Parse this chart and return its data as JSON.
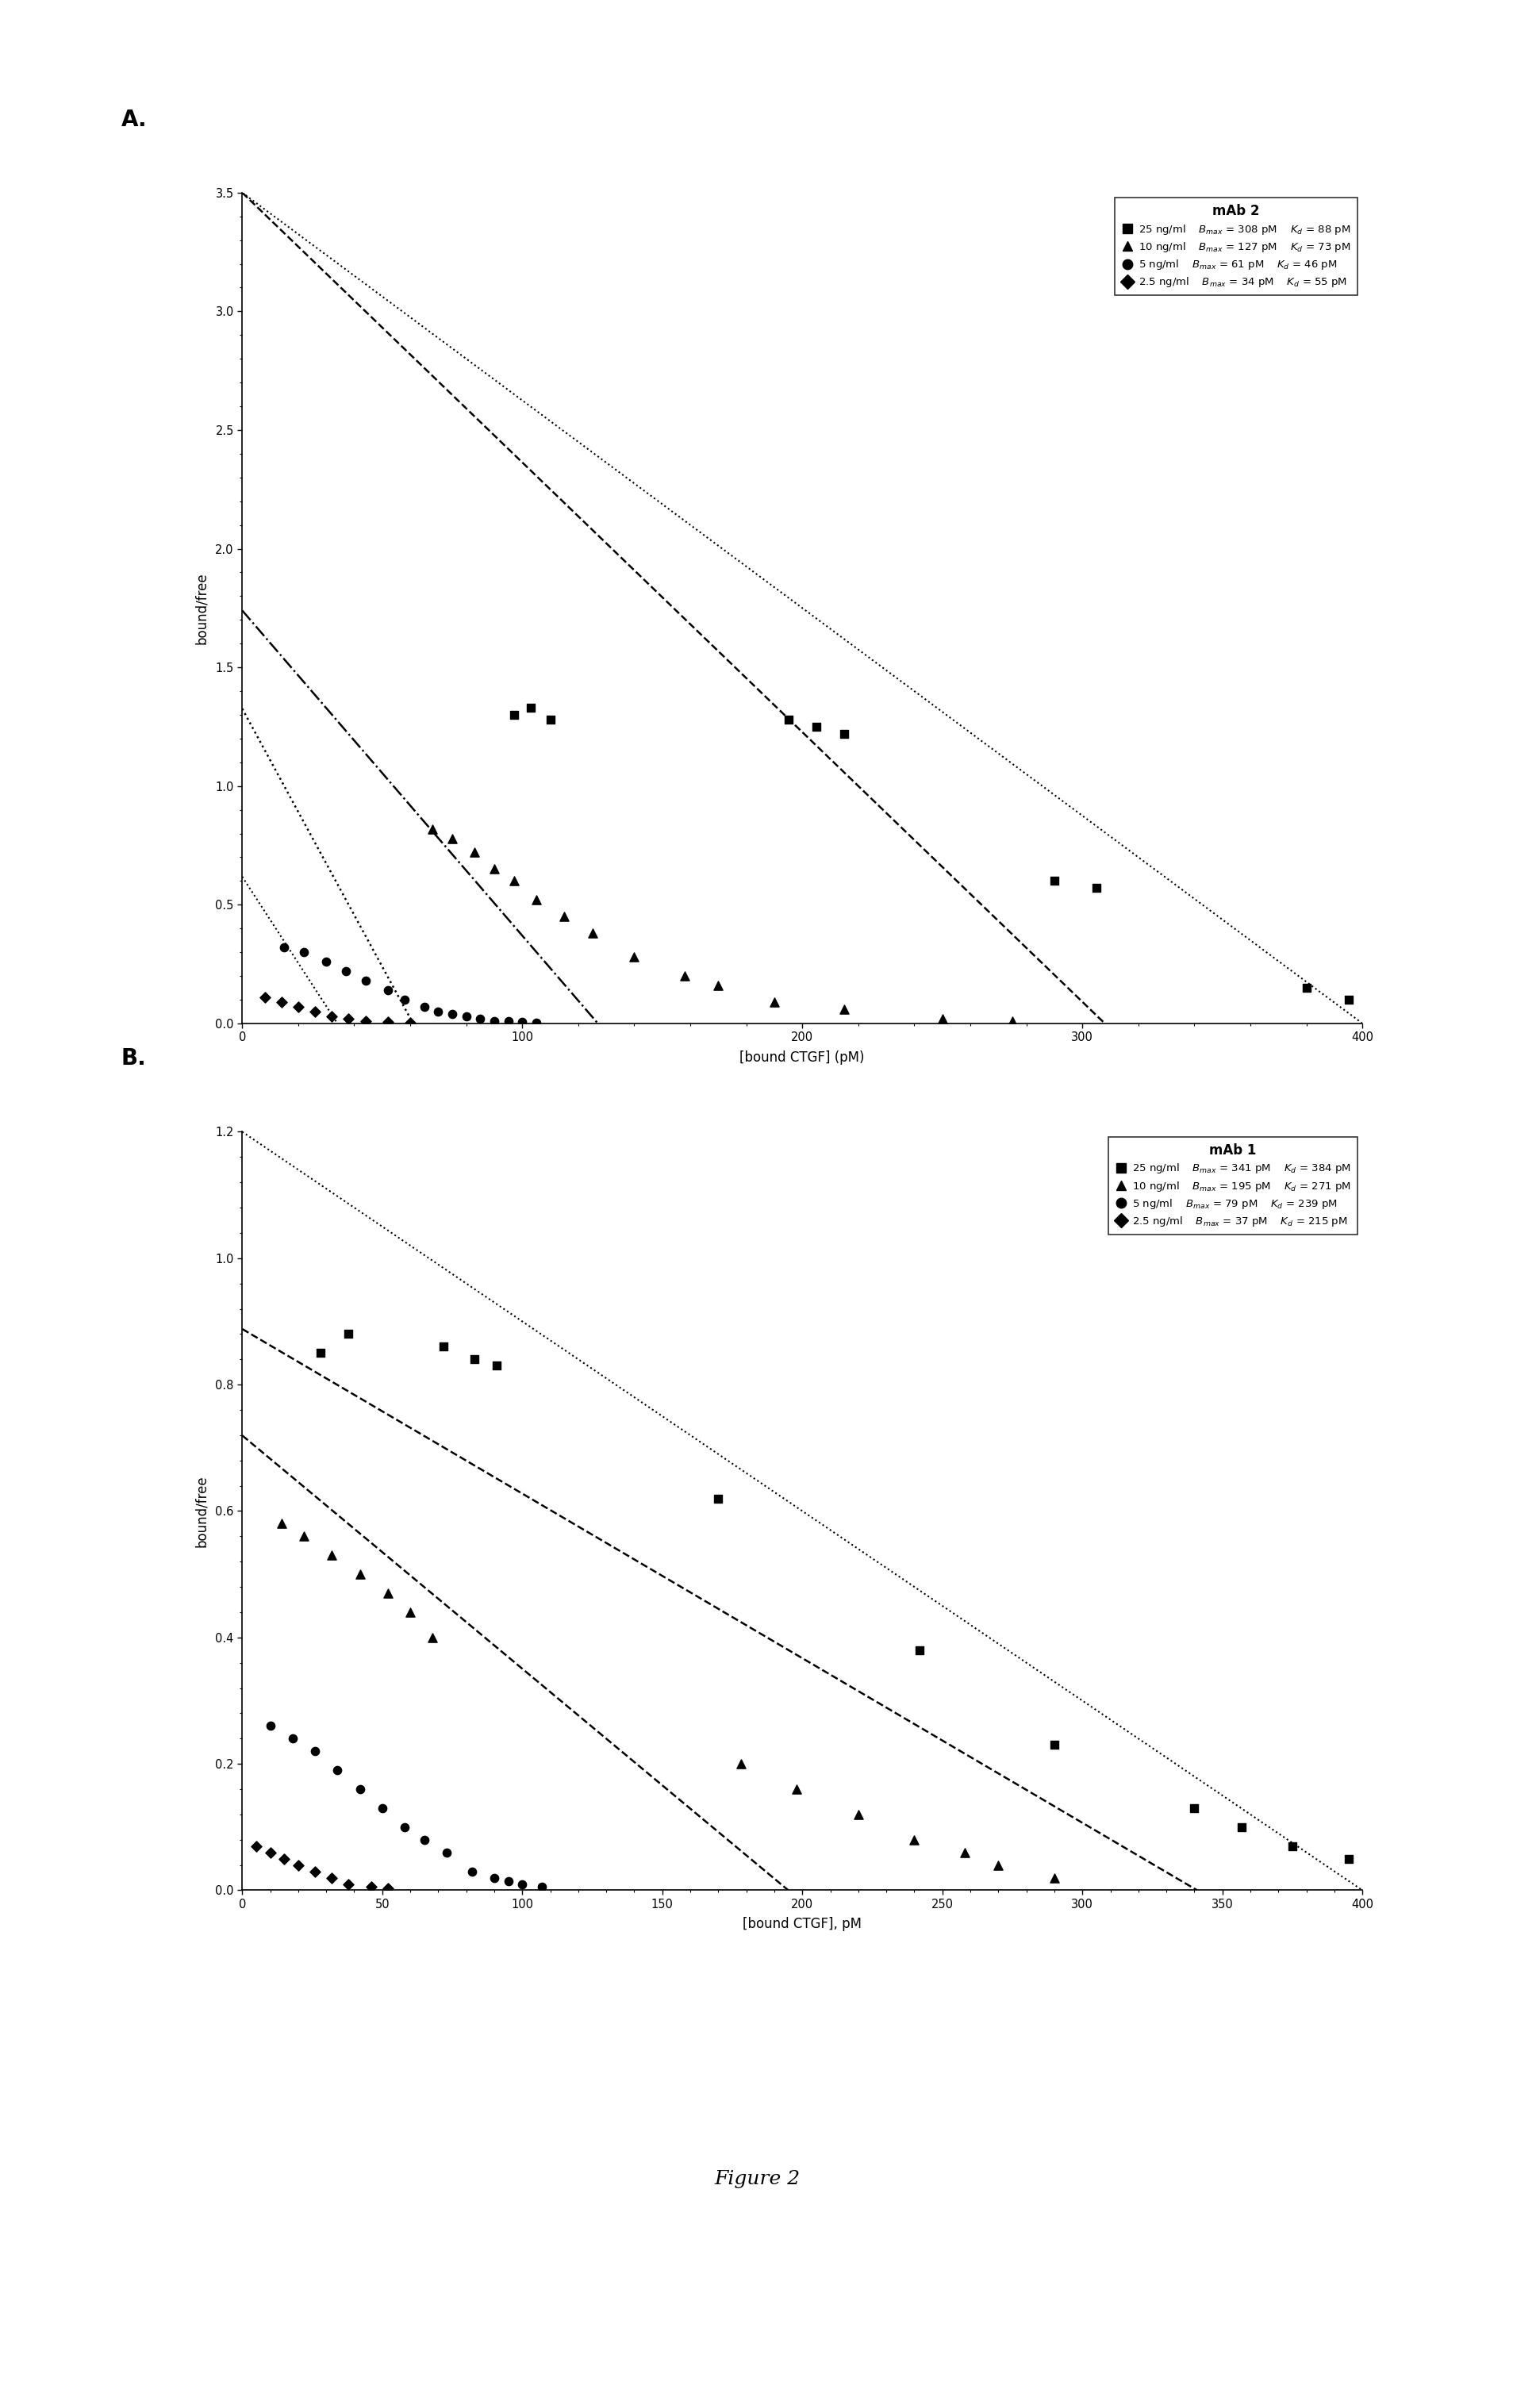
{
  "panel_A": {
    "title": "mAb 2",
    "xlabel": "[bound CTGF] (pM)",
    "ylabel": "bound/free",
    "xlim": [
      0,
      400
    ],
    "ylim": [
      0,
      3.5
    ],
    "yticks": [
      0.0,
      0.5,
      1.0,
      1.5,
      2.0,
      2.5,
      3.0,
      3.5
    ],
    "xticks": [
      0,
      100,
      200,
      300,
      400
    ],
    "dotted_line": {
      "x0": 0,
      "y0": 3.5,
      "x1": 400,
      "y1": 0
    },
    "fit_lines": [
      {
        "Bmax": 308,
        "Kd": 88,
        "style": "--",
        "lw": 1.8
      },
      {
        "Bmax": 127,
        "Kd": 73,
        "style": "-.",
        "lw": 1.8
      },
      {
        "Bmax": 61,
        "Kd": 46,
        "style": ":",
        "lw": 1.8
      },
      {
        "Bmax": 34,
        "Kd": 55,
        "style": ":",
        "lw": 1.5
      }
    ],
    "series": [
      {
        "label": "25 ng/ml",
        "Bmax": 308,
        "Kd": 88,
        "marker": "s",
        "filled": true,
        "data_x": [
          97,
          103,
          110,
          195,
          205,
          215,
          290,
          305,
          380,
          395
        ],
        "data_y": [
          1.3,
          1.33,
          1.28,
          1.28,
          1.25,
          1.22,
          0.6,
          0.57,
          0.15,
          0.1
        ]
      },
      {
        "label": "10 ng/ml",
        "Bmax": 127,
        "Kd": 73,
        "marker": "^",
        "filled": true,
        "data_x": [
          68,
          75,
          83,
          90,
          97,
          105,
          115,
          125,
          140,
          158,
          170,
          190,
          215,
          250,
          275
        ],
        "data_y": [
          0.82,
          0.78,
          0.72,
          0.65,
          0.6,
          0.52,
          0.45,
          0.38,
          0.28,
          0.2,
          0.16,
          0.09,
          0.06,
          0.02,
          0.01
        ]
      },
      {
        "label": "5 ng/ml",
        "Bmax": 61,
        "Kd": 46,
        "marker": "o",
        "filled": true,
        "data_x": [
          15,
          22,
          30,
          37,
          44,
          52,
          58,
          65,
          70,
          75,
          80,
          85,
          90,
          95,
          100,
          105
        ],
        "data_y": [
          0.32,
          0.3,
          0.26,
          0.22,
          0.18,
          0.14,
          0.1,
          0.07,
          0.05,
          0.04,
          0.03,
          0.02,
          0.01,
          0.008,
          0.005,
          0.003
        ]
      },
      {
        "label": "2.5 ng/ml",
        "Bmax": 34,
        "Kd": 55,
        "marker": "D",
        "filled": true,
        "data_x": [
          8,
          14,
          20,
          26,
          32,
          38,
          44,
          52,
          60
        ],
        "data_y": [
          0.11,
          0.09,
          0.07,
          0.05,
          0.03,
          0.02,
          0.01,
          0.006,
          0.003
        ]
      }
    ],
    "legend_title": "mAb 2",
    "legend_entries": [
      {
        "conc": "25 ng/ml",
        "bmax": "308 pM",
        "kd": "88 pM"
      },
      {
        "conc": "10 ng/ml",
        "bmax": "127 pM",
        "kd": "73 pM"
      },
      {
        "conc": "5 ng/ml",
        "bmax": "61 pM",
        "kd": "46 pM"
      },
      {
        "conc": "2.5 ng/ml",
        "bmax": "34 pM",
        "kd": "55 pM"
      }
    ]
  },
  "panel_B": {
    "title": "mAb 1",
    "xlabel": "[bound CTGF], pM",
    "ylabel": "bound/free",
    "xlim": [
      0,
      400
    ],
    "ylim": [
      0,
      1.2
    ],
    "yticks": [
      0.0,
      0.2,
      0.4,
      0.6,
      0.8,
      1.0,
      1.2
    ],
    "xticks": [
      0,
      50,
      100,
      150,
      200,
      250,
      300,
      350,
      400
    ],
    "dotted_line": {
      "x0": 0,
      "y0": 1.2,
      "x1": 400,
      "y1": 0
    },
    "fit_lines": [
      {
        "Bmax": 341,
        "Kd": 384,
        "style": "--",
        "lw": 1.8
      },
      {
        "Bmax": 195,
        "Kd": 271,
        "style": "--",
        "lw": 1.8
      }
    ],
    "series": [
      {
        "label": "25 ng/ml",
        "Bmax": 341,
        "Kd": 384,
        "marker": "s",
        "filled": true,
        "data_x": [
          28,
          38,
          72,
          83,
          91,
          170,
          242,
          290,
          340,
          357,
          375,
          395
        ],
        "data_y": [
          0.85,
          0.88,
          0.86,
          0.84,
          0.83,
          0.62,
          0.38,
          0.23,
          0.13,
          0.1,
          0.07,
          0.05
        ]
      },
      {
        "label": "10 ng/ml",
        "Bmax": 195,
        "Kd": 271,
        "marker": "^",
        "filled": true,
        "data_x": [
          14,
          22,
          32,
          42,
          52,
          60,
          68,
          178,
          198,
          220,
          240,
          258,
          270,
          290
        ],
        "data_y": [
          0.58,
          0.56,
          0.53,
          0.5,
          0.47,
          0.44,
          0.4,
          0.2,
          0.16,
          0.12,
          0.08,
          0.06,
          0.04,
          0.02
        ]
      },
      {
        "label": "5 ng/ml",
        "Bmax": 79,
        "Kd": 239,
        "marker": "o",
        "filled": true,
        "data_x": [
          10,
          18,
          26,
          34,
          42,
          50,
          58,
          65,
          73,
          82,
          90,
          95,
          100,
          107
        ],
        "data_y": [
          0.26,
          0.24,
          0.22,
          0.19,
          0.16,
          0.13,
          0.1,
          0.08,
          0.06,
          0.03,
          0.02,
          0.015,
          0.01,
          0.006
        ]
      },
      {
        "label": "2.5 ng/ml",
        "Bmax": 37,
        "Kd": 215,
        "marker": "D",
        "filled": true,
        "data_x": [
          5,
          10,
          15,
          20,
          26,
          32,
          38,
          46,
          52
        ],
        "data_y": [
          0.07,
          0.06,
          0.05,
          0.04,
          0.03,
          0.02,
          0.01,
          0.006,
          0.003
        ]
      }
    ],
    "legend_title": "mAb 1",
    "legend_entries": [
      {
        "conc": "25 ng/ml",
        "bmax": "341 pM",
        "kd": "384 pM"
      },
      {
        "conc": "10 ng/ml",
        "bmax": "195 pM",
        "kd": "271 pM"
      },
      {
        "conc": "5 ng/ml",
        "bmax": "79 pM",
        "kd": "239 pM"
      },
      {
        "conc": "2.5 ng/ml",
        "bmax": "37 pM",
        "kd": "215 pM"
      }
    ]
  },
  "figure_label": "Figure 2",
  "bg_color": "#ffffff",
  "markers": [
    "s",
    "^",
    "o",
    "D"
  ],
  "marker_sizes": [
    55,
    65,
    55,
    45
  ]
}
